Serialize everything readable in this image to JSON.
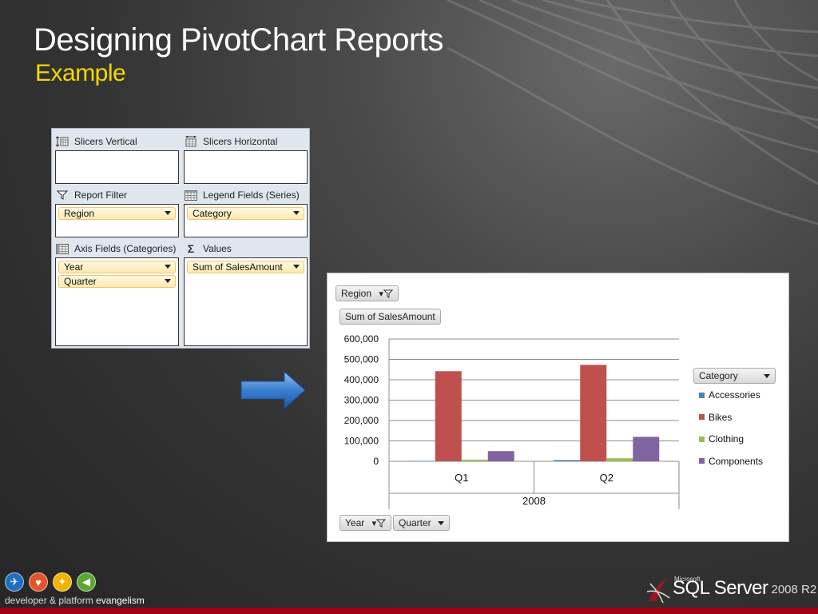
{
  "slide": {
    "title": "Designing PivotChart Reports",
    "subtitle": "Example"
  },
  "field_list": {
    "slicers_vertical": "Slicers Vertical",
    "slicers_horizontal": "Slicers Horizontal",
    "report_filter": {
      "label": "Report Filter",
      "fields": [
        "Region"
      ]
    },
    "legend_fields": {
      "label": "Legend Fields (Series)",
      "fields": [
        "Category"
      ]
    },
    "axis_fields": {
      "label": "Axis Fields (Categories)",
      "fields": [
        "Year",
        "Quarter"
      ]
    },
    "values": {
      "label": "Values",
      "fields": [
        "Sum of SalesAmount"
      ]
    },
    "icons": {
      "slicers_vertical": "slicer-vertical-icon",
      "slicers_horizontal": "slicer-horizontal-icon",
      "report_filter": "filter-icon",
      "legend": "table-icon",
      "axis": "table-icon",
      "values": "sigma-icon"
    }
  },
  "chart_buttons": {
    "filter_region": "Region",
    "values_field": "Sum of SalesAmount",
    "legend_field": "Category",
    "axis_year": "Year",
    "axis_quarter": "Quarter"
  },
  "chart_data": {
    "type": "bar",
    "categories": [
      "Q1",
      "Q2"
    ],
    "group_label": "2008",
    "yticks": [
      "600,000",
      "500,000",
      "400,000",
      "300,000",
      "200,000",
      "100,000",
      "0"
    ],
    "ylim": [
      0,
      600000
    ],
    "series": [
      {
        "name": "Accessories",
        "color": "#4f81bd",
        "values": [
          2000,
          6000
        ]
      },
      {
        "name": "Bikes",
        "color": "#c0504d",
        "values": [
          442000,
          473000
        ]
      },
      {
        "name": "Clothing",
        "color": "#9bbb59",
        "values": [
          8000,
          15000
        ]
      },
      {
        "name": "Components",
        "color": "#8064a2",
        "values": [
          50000,
          120000
        ]
      }
    ],
    "grid": true,
    "legend": "right"
  },
  "footer": {
    "dpe_prefix": "developer & platform",
    "dpe_suffix": "evangelism",
    "ms": "Microsoft",
    "product": "SQL Server",
    "version": "2008 R2"
  }
}
